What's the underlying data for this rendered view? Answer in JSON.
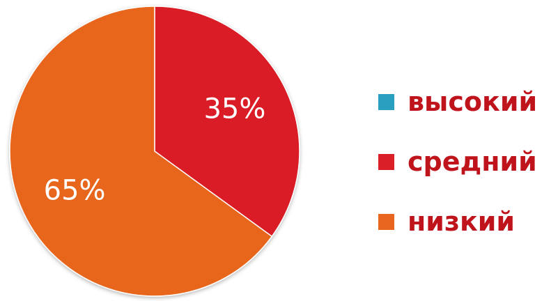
{
  "chart_data": {
    "type": "pie",
    "title": "",
    "categories": [
      "высокий",
      "средний",
      "низкий"
    ],
    "values": [
      0,
      35,
      65
    ],
    "value_labels": [
      "",
      "35%",
      "65%"
    ],
    "colors": [
      "#2a9fbf",
      "#da1f26",
      "#e8651f"
    ],
    "legend_position": "right",
    "legend_text_color": "#c0141c"
  }
}
